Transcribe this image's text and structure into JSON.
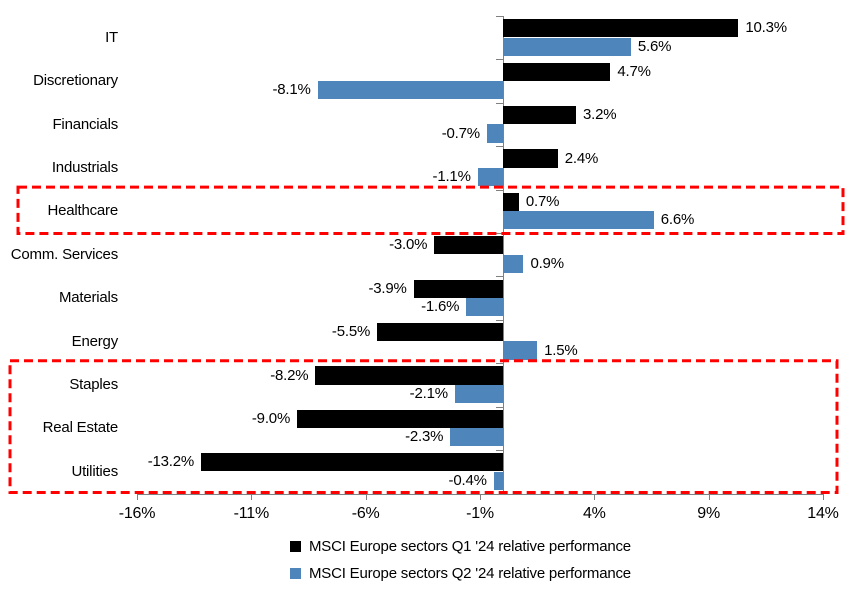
{
  "chart_data": {
    "type": "bar",
    "orientation": "horizontal",
    "title": "",
    "categories": [
      "IT",
      "Discretionary",
      "Financials",
      "Industrials",
      "Healthcare",
      "Comm. Services",
      "Materials",
      "Energy",
      "Staples",
      "Real Estate",
      "Utilities"
    ],
    "series": [
      {
        "name": "MSCI Europe sectors Q1 '24 relative performance",
        "color": "#000000",
        "values": [
          10.3,
          4.7,
          3.2,
          2.4,
          0.7,
          -3.0,
          -3.9,
          -5.5,
          -8.2,
          -9.0,
          -13.2
        ],
        "labels": [
          "10.3%",
          "4.7%",
          "3.2%",
          "2.4%",
          "0.7%",
          "-3.0%",
          "-3.9%",
          "-5.5%",
          "-8.2%",
          "-9.0%",
          "-13.2%"
        ]
      },
      {
        "name": "MSCI Europe sectors Q2 '24 relative performance",
        "color": "#4E86BC",
        "values": [
          5.6,
          -8.1,
          -0.7,
          -1.1,
          6.6,
          0.9,
          -1.6,
          1.5,
          -2.1,
          -2.3,
          -0.4
        ],
        "labels": [
          "5.6%",
          "-8.1%",
          "-0.7%",
          "-1.1%",
          "6.6%",
          "0.9%",
          "-1.6%",
          "1.5%",
          "-2.1%",
          "-2.3%",
          "-0.4%"
        ]
      }
    ],
    "xlim": [
      -16,
      14
    ],
    "x_tick_values": [
      -16,
      -11,
      -6,
      -1,
      4,
      9,
      14
    ],
    "x_tick_labels": [
      "-16%",
      "-11%",
      "-6%",
      "-1%",
      "4%",
      "9%",
      "14%"
    ],
    "value_suffix": "%",
    "grid": false,
    "legend_position": "bottom",
    "axis_color": "#808080",
    "highlight_color": "#FF0000",
    "highlight_boxes": [
      {
        "categories": [
          "Healthcare"
        ]
      },
      {
        "categories": [
          "Staples",
          "Real Estate",
          "Utilities"
        ]
      }
    ]
  }
}
